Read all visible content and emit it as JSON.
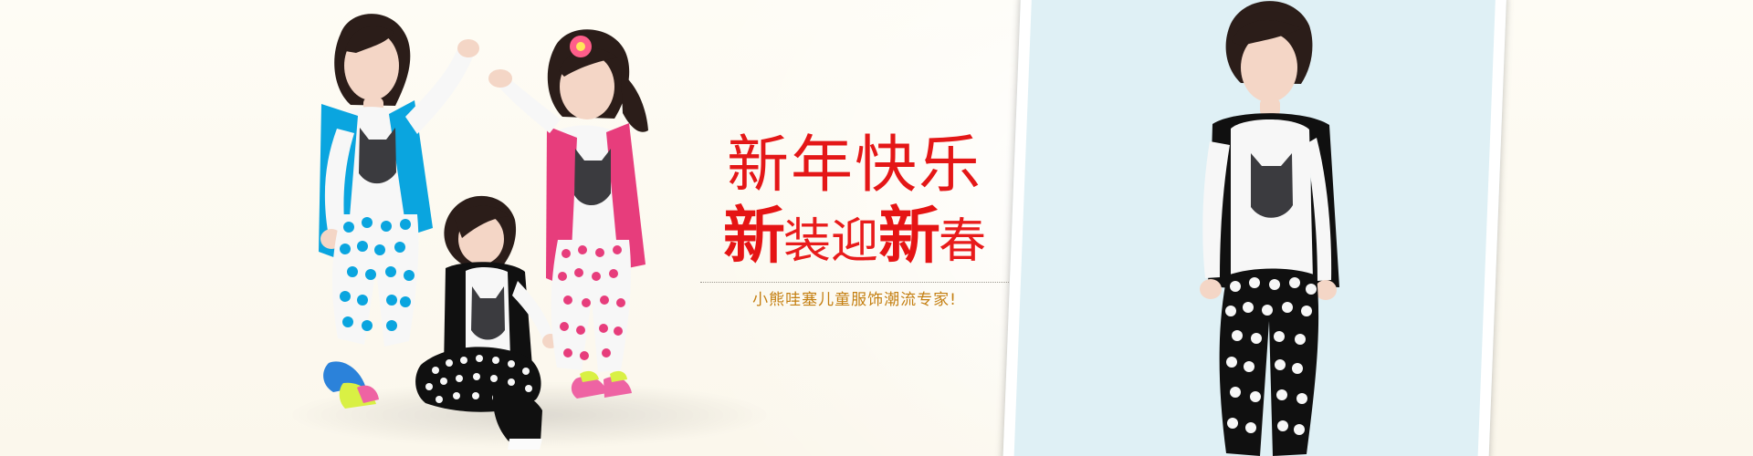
{
  "banner": {
    "title_main": "新年快乐",
    "title_sub": {
      "part1": "新",
      "part2": "装迎",
      "part3": "新",
      "part4": "春"
    },
    "tagline": "小熊哇塞儿童服饰潮流专家!",
    "colors": {
      "background": "#fcf9ef",
      "accent_red": "#e41717",
      "tagline_gold": "#c47f11",
      "right_panel": "#dff0f5",
      "right_frame": "#ffffff"
    }
  }
}
